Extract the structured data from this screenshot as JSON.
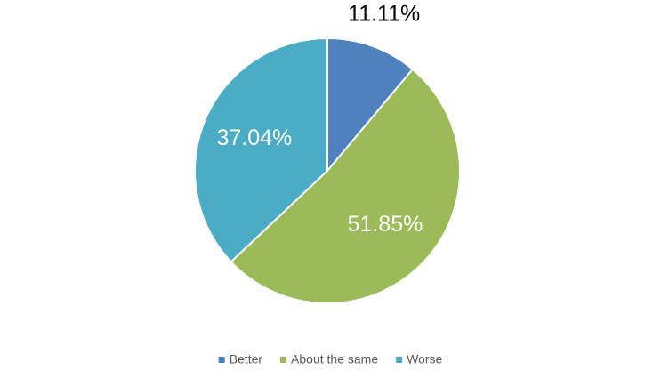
{
  "chart_data": {
    "type": "pie",
    "categories": [
      "Better",
      "About the same",
      "Worse"
    ],
    "values": [
      11.11,
      51.85,
      37.04
    ],
    "value_labels": [
      "11.11%",
      "51.85%",
      "37.04%"
    ],
    "colors": [
      "#4f81bd",
      "#9bbb59",
      "#4bacc6"
    ],
    "legend": "bottom"
  }
}
